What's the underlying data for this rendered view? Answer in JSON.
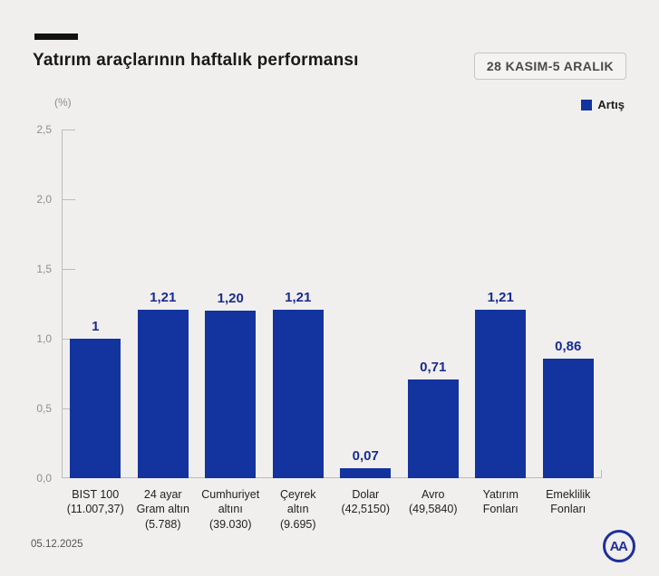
{
  "header": {
    "title": "Yatırım araçlarının haftalık performansı",
    "period_badge": "28 KASIM-5 ARALIK"
  },
  "legend": {
    "label": "Artış",
    "color": "#13339e"
  },
  "axis": {
    "unit_label": "(%)"
  },
  "chart_data": {
    "type": "bar",
    "title": "Yatırım araçlarının haftalık performansı",
    "subtitle": "28 KASIM-5 ARALIK",
    "xlabel": "",
    "ylabel": "(%)",
    "ylim": [
      0,
      2.5
    ],
    "ytick_labels": [
      "2,5",
      "2,0",
      "1,5",
      "1,0",
      "0,5",
      "0,0"
    ],
    "grid": false,
    "legend_position": "top-right",
    "legend_entries": [
      {
        "label": "Artış",
        "color": "#13339e"
      }
    ],
    "bar_color": "#13339e",
    "value_label_color": "#1a2b8f",
    "categories": [
      {
        "lines": [
          "BIST 100",
          "(11.007,37)"
        ]
      },
      {
        "lines": [
          "24 ayar",
          "Gram altın",
          "(5.788)"
        ]
      },
      {
        "lines": [
          "Cumhuriyet",
          "altını",
          "(39.030)"
        ]
      },
      {
        "lines": [
          "Çeyrek",
          "altın",
          "(9.695)"
        ]
      },
      {
        "lines": [
          "Dolar",
          "(42,5150)"
        ]
      },
      {
        "lines": [
          "Avro",
          "(49,5840)"
        ]
      },
      {
        "lines": [
          "Yatırım",
          "Fonları"
        ]
      },
      {
        "lines": [
          "Emeklilik",
          "Fonları"
        ]
      }
    ],
    "values": [
      1,
      1.21,
      1.2,
      1.21,
      0.07,
      0.71,
      1.21,
      0.86
    ],
    "value_labels": [
      "1",
      "1,21",
      "1,20",
      "1,21",
      "0,07",
      "0,71",
      "1,21",
      "0,86"
    ]
  },
  "footer": {
    "date": "05.12.2025",
    "logo_text": "AA"
  }
}
